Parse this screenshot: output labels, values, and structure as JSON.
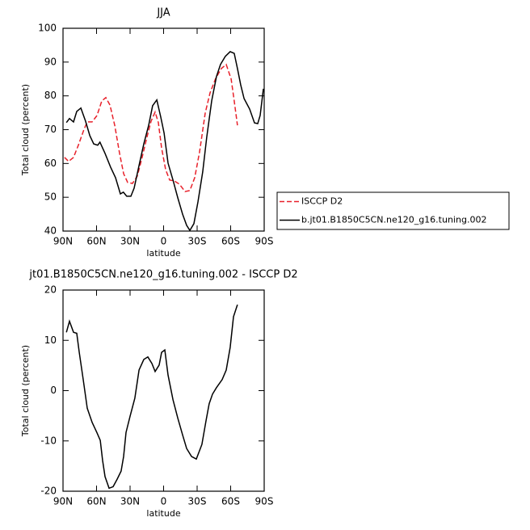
{
  "chart_data": [
    {
      "type": "line",
      "title": "JJA",
      "xlabel": "latitude",
      "ylabel": "Total cloud (percent)",
      "xlim": [
        90,
        -90
      ],
      "xticks": [
        {
          "value": 90,
          "label": "90N"
        },
        {
          "value": 60,
          "label": "60N"
        },
        {
          "value": 30,
          "label": "30N"
        },
        0,
        {
          "value": -30,
          "label": "30S"
        },
        {
          "value": -60,
          "label": "60S"
        },
        {
          "value": -90,
          "label": "90S"
        }
      ],
      "ylim": [
        40,
        100
      ],
      "yticks": [
        40,
        50,
        60,
        70,
        80,
        90,
        100
      ],
      "series": [
        {
          "name": "ISCCP D2",
          "color": "#e8202a",
          "style": "dashed",
          "x": [
            88.6,
            85,
            80.6,
            76.3,
            71.2,
            68.3,
            64,
            59.6,
            55.3,
            51.7,
            48,
            43.7,
            39.4,
            35.8,
            32.2,
            27.8,
            23.5,
            19.2,
            14.9,
            11.2,
            7.6,
            4.7,
            1.8,
            -1.8,
            -5.4,
            -9.8,
            -14.1,
            -19.2,
            -23.5,
            -27.8,
            -32.2,
            -37.2,
            -41.6,
            -46.6,
            -51.7,
            -56,
            -60.4,
            -63.2,
            -66.1
          ],
          "values": [
            61.8,
            60.6,
            61.8,
            65.4,
            70.1,
            72.3,
            72.3,
            74.2,
            78.5,
            79.5,
            77.3,
            71.3,
            63,
            57,
            54.4,
            54.1,
            56.3,
            61.8,
            67.8,
            72.5,
            75.2,
            72.1,
            64.6,
            58.2,
            55.1,
            54.8,
            53.9,
            51.7,
            52,
            55.8,
            63.4,
            74.9,
            80.9,
            85.2,
            88.1,
            89.3,
            85,
            78.5,
            71.3
          ]
        },
        {
          "name": "b.jt01.B1850C5CN.ne120_g16.tuning.002",
          "color": "#000000",
          "style": "solid",
          "x": [
            87,
            84.2,
            80.6,
            77.7,
            74,
            69.8,
            66,
            62.5,
            59,
            57,
            52.4,
            47.4,
            43,
            38.7,
            36,
            33,
            29.3,
            26.4,
            22,
            17.7,
            13.4,
            9.8,
            6.1,
            2.5,
            -0.4,
            -4,
            -8.4,
            -12.7,
            -17,
            -20.6,
            -23.5,
            -27.1,
            -30.7,
            -35,
            -38.6,
            -43,
            -47.3,
            -50.9,
            -55.2,
            -59.6,
            -63.2,
            -66.1,
            -69,
            -72,
            -77,
            -81.3,
            -84.2,
            -86.4,
            -89.3
          ],
          "values": [
            72.1,
            73.3,
            72.3,
            75.4,
            76.4,
            72.5,
            68.2,
            65.8,
            65.4,
            66.3,
            63,
            58.9,
            55.8,
            51,
            51.5,
            50.3,
            50.3,
            52.7,
            59.4,
            65.8,
            71.3,
            77.1,
            78.8,
            73.7,
            69,
            60.1,
            55.1,
            49.8,
            45,
            41.7,
            40.2,
            42.2,
            48.6,
            57.5,
            67.8,
            78.5,
            85.7,
            89.3,
            91.7,
            93.1,
            92.6,
            88.1,
            83.3,
            79.2,
            76.1,
            72,
            71.8,
            74.2,
            82.1
          ]
        }
      ]
    },
    {
      "type": "line",
      "title": "jt01.B1850C5CN.ne120_g16.tuning.002 - ISCCP D2",
      "xlabel": "latitude",
      "ylabel": "Total cloud (percent)",
      "xlim": [
        90,
        -90
      ],
      "xticks": [
        {
          "value": 90,
          "label": "90N"
        },
        {
          "value": 60,
          "label": "60N"
        },
        {
          "value": 30,
          "label": "30N"
        },
        0,
        {
          "value": -30,
          "label": "30S"
        },
        {
          "value": -60,
          "label": "60S"
        },
        {
          "value": -90,
          "label": "90S"
        }
      ],
      "ylim": [
        -20,
        20
      ],
      "yticks": [
        -20,
        -10,
        0,
        10,
        20
      ],
      "series": [
        {
          "color": "#000000",
          "style": "solid",
          "x": [
            87,
            84.2,
            80.6,
            77.7,
            75.5,
            71.9,
            68.3,
            64,
            59.6,
            56.7,
            54.6,
            52.4,
            48.8,
            45.2,
            41.6,
            38,
            35.8,
            33.6,
            30,
            25.7,
            22,
            17.7,
            14.1,
            10.5,
            7.6,
            4,
            1.8,
            -1.1,
            -4,
            -8.4,
            -12.7,
            -17,
            -20.6,
            -25,
            -29.3,
            -34.3,
            -38,
            -40.8,
            -43.7,
            -47.3,
            -52.4,
            -56,
            -59.6,
            -62.5,
            -66.1
          ],
          "values": [
            11.6,
            13.8,
            11.6,
            11.4,
            7.6,
            2.2,
            -3.5,
            -6.3,
            -8.4,
            -9.9,
            -13.9,
            -17.1,
            -19.4,
            -19.1,
            -17.6,
            -16,
            -13.1,
            -8.3,
            -5.1,
            -1.5,
            4.1,
            6.2,
            6.7,
            5.4,
            3.8,
            5.1,
            7.6,
            8.1,
            3.1,
            -1.8,
            -5.5,
            -8.8,
            -11.5,
            -13.1,
            -13.6,
            -10.7,
            -5.9,
            -2.6,
            -0.7,
            0.6,
            2.2,
            4.1,
            8.6,
            14.7,
            17.1
          ]
        }
      ]
    }
  ]
}
